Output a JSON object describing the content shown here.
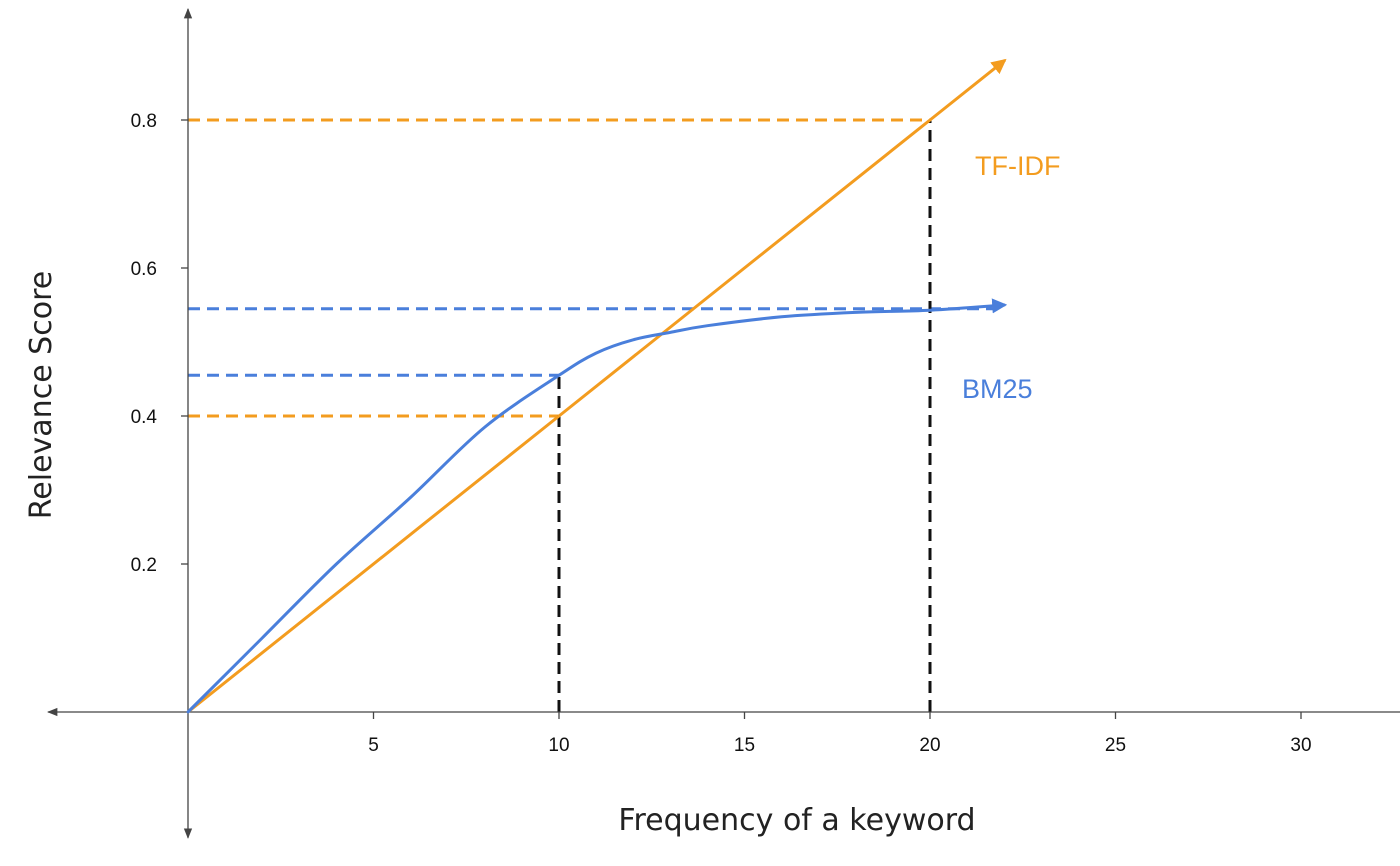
{
  "chart_data": {
    "type": "line",
    "title": "",
    "xlabel": "Frequency of a keyword",
    "ylabel": "Relevance Score",
    "xlim": [
      0,
      33.5
    ],
    "ylim": [
      -0.17,
      0.95
    ],
    "x_ticks": [
      {
        "value": 5,
        "label": "5"
      },
      {
        "value": 10,
        "label": "10"
      },
      {
        "value": 15,
        "label": "15"
      },
      {
        "value": 20,
        "label": "20"
      },
      {
        "value": 25,
        "label": "25"
      },
      {
        "value": 30,
        "label": "30"
      }
    ],
    "y_ticks": [
      {
        "value": 0.2,
        "label": "0.2"
      },
      {
        "value": 0.4,
        "label": "0.4"
      },
      {
        "value": 0.6,
        "label": "0.6"
      },
      {
        "value": 0.8,
        "label": "0.8"
      }
    ],
    "series": [
      {
        "name": "TF-IDF",
        "color": "#F39C1F",
        "x": [
          0,
          10,
          20,
          22
        ],
        "y": [
          0,
          0.4,
          0.8,
          0.88
        ]
      },
      {
        "name": "BM25",
        "color": "#4A7FDB",
        "x": [
          0,
          2,
          4,
          6,
          8,
          10,
          11,
          12,
          13,
          14,
          16,
          18,
          20,
          22
        ],
        "y": [
          0,
          0.1,
          0.2,
          0.29,
          0.385,
          0.455,
          0.485,
          0.503,
          0.513,
          0.522,
          0.534,
          0.54,
          0.543,
          0.55
        ]
      }
    ],
    "reference_lines": [
      {
        "orientation": "horizontal",
        "y": 0.8,
        "x_from": 0,
        "x_to": 20,
        "color": "#F39C1F"
      },
      {
        "orientation": "horizontal",
        "y": 0.4,
        "x_from": 0,
        "x_to": 10,
        "color": "#F39C1F"
      },
      {
        "orientation": "horizontal",
        "y": 0.545,
        "x_from": 0,
        "x_to": 22,
        "color": "#4A7FDB"
      },
      {
        "orientation": "horizontal",
        "y": 0.455,
        "x_from": 0,
        "x_to": 10,
        "color": "#4A7FDB"
      },
      {
        "orientation": "vertical",
        "x": 10,
        "y_from": 0,
        "y_to": 0.455,
        "color": "#111111"
      },
      {
        "orientation": "vertical",
        "x": 20,
        "y_from": 0,
        "y_to": 0.8,
        "color": "#111111"
      }
    ],
    "grid": false,
    "legend": "none"
  }
}
